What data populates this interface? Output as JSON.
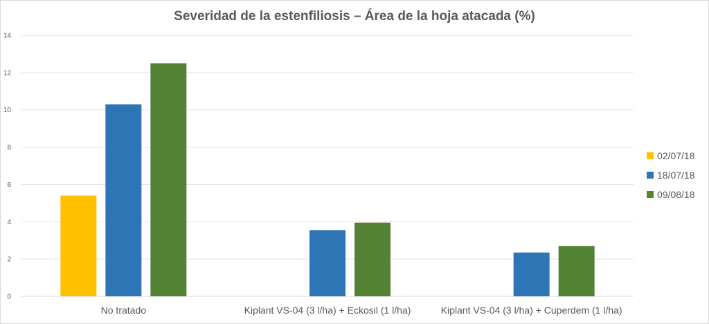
{
  "chart_data": {
    "type": "bar",
    "title": "Severidad de la estenfiliosis – Área de la hoja atacada (%)",
    "categories": [
      "No tratado",
      "Kiplant VS-04 (3 l/ha) + Eckosil (1 l/ha)",
      "Kiplant VS-04 (3 l/ha) + Cuperdem (1 l/ha)"
    ],
    "series": [
      {
        "name": "02/07/18",
        "color": "#FFC000",
        "values": [
          5.4,
          null,
          null
        ]
      },
      {
        "name": "18/07/18",
        "color": "#2E75B6",
        "values": [
          10.3,
          3.55,
          2.35
        ]
      },
      {
        "name": "09/08/18",
        "color": "#548235",
        "values": [
          12.5,
          3.95,
          2.7
        ]
      }
    ],
    "ylim": [
      0,
      14
    ],
    "yticks": [
      "0",
      "2",
      "4",
      "6",
      "8",
      "10",
      "12",
      "14"
    ],
    "grid": true,
    "legend_position": "right"
  }
}
